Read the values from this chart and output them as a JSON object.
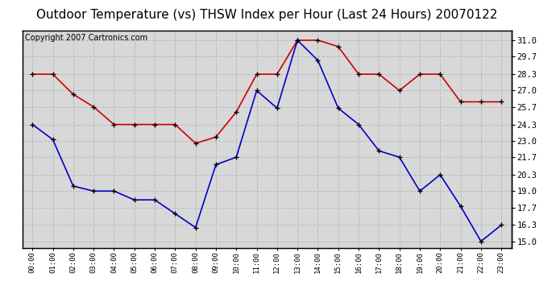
{
  "title": "Outdoor Temperature (vs) THSW Index per Hour (Last 24 Hours) 20070122",
  "copyright": "Copyright 2007 Cartronics.com",
  "hours": [
    "00:00",
    "01:00",
    "02:00",
    "03:00",
    "04:00",
    "05:00",
    "06:00",
    "07:00",
    "08:00",
    "09:00",
    "10:00",
    "11:00",
    "12:00",
    "13:00",
    "14:00",
    "15:00",
    "16:00",
    "17:00",
    "18:00",
    "19:00",
    "20:00",
    "21:00",
    "22:00",
    "23:00"
  ],
  "red_data": [
    28.3,
    28.3,
    26.7,
    25.7,
    24.3,
    24.3,
    24.3,
    24.3,
    22.8,
    23.3,
    25.3,
    28.3,
    28.3,
    31.0,
    31.0,
    30.5,
    28.3,
    28.3,
    27.0,
    28.3,
    28.3,
    26.1,
    26.1,
    26.1
  ],
  "blue_data": [
    24.3,
    23.1,
    19.4,
    19.0,
    19.0,
    18.3,
    18.3,
    17.2,
    16.1,
    21.1,
    21.7,
    27.0,
    25.6,
    31.0,
    29.4,
    25.6,
    24.3,
    22.2,
    21.7,
    19.0,
    20.3,
    17.8,
    15.0,
    16.3
  ],
  "yticks": [
    15.0,
    16.3,
    17.7,
    19.0,
    20.3,
    21.7,
    23.0,
    24.3,
    25.7,
    27.0,
    28.3,
    29.7,
    31.0
  ],
  "ymin": 14.5,
  "ymax": 31.8,
  "red_color": "#cc0000",
  "blue_color": "#0000cc",
  "bg_color": "#ffffff",
  "plot_bg_color": "#d8d8d8",
  "grid_color": "#bbbbbb",
  "title_fontsize": 11,
  "copyright_fontsize": 7
}
